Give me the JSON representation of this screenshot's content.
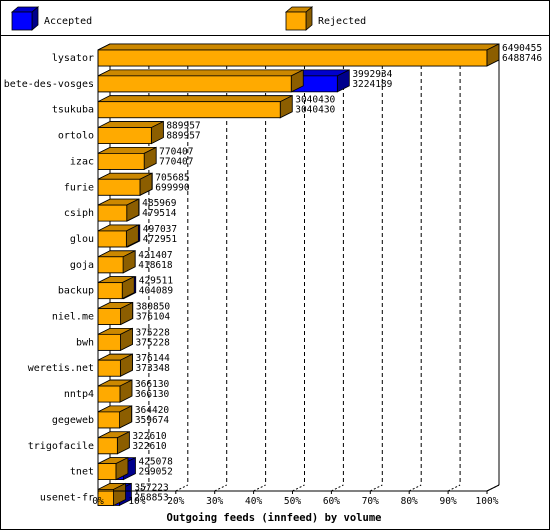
{
  "chart_data": {
    "type": "bar",
    "orientation": "horizontal",
    "title": "",
    "xlabel": "Outgoing feeds (innfeed) by volume",
    "ylabel": "",
    "xlim": [
      0,
      100
    ],
    "xticks": [
      "0%",
      "10%",
      "20%",
      "30%",
      "40%",
      "50%",
      "60%",
      "70%",
      "80%",
      "90%",
      "100%"
    ],
    "grid": "vertical dashed",
    "legend": "top",
    "colors": {
      "accepted": "#0000ff",
      "rejected": "#ffaa00"
    },
    "categories": [
      "lysator",
      "bete-des-vosges",
      "tsukuba",
      "ortolo",
      "izac",
      "furie",
      "csiph",
      "glou",
      "goja",
      "backup",
      "niel.me",
      "bwh",
      "weretis.net",
      "nntp4",
      "gegeweb",
      "trigofacile",
      "tnet",
      "usenet-fr"
    ],
    "series": [
      {
        "name": "Accepted",
        "values": [
          6490455,
          3992934,
          3040430,
          889957,
          770407,
          705685,
          485969,
          497037,
          421407,
          429511,
          380850,
          375228,
          376144,
          366130,
          364420,
          322610,
          425078,
          357223
        ]
      },
      {
        "name": "Rejected",
        "values": [
          6488746,
          3224189,
          3040430,
          889957,
          770407,
          699990,
          479514,
          472951,
          418618,
          404089,
          376104,
          375228,
          373348,
          366130,
          359674,
          322610,
          299052,
          258853
        ]
      }
    ]
  }
}
